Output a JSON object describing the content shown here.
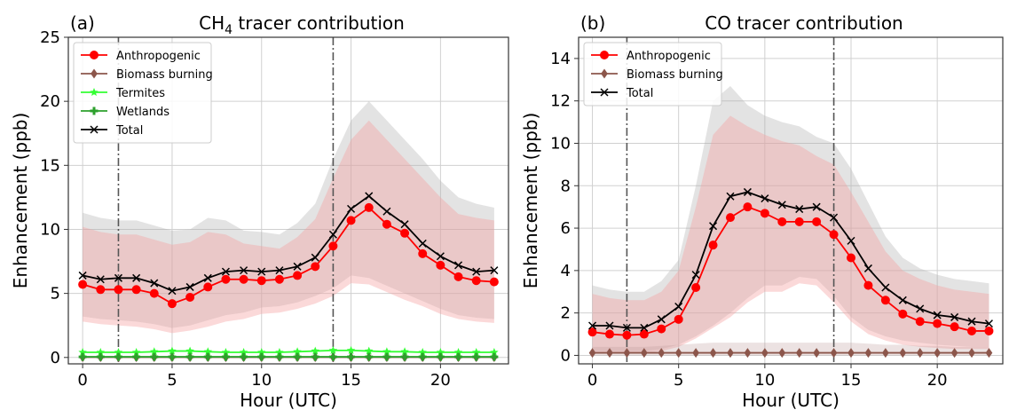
{
  "chart_data": [
    {
      "type": "line",
      "panel_label": "(a)",
      "title_main": "CH",
      "title_sub": "4",
      "title_rest": " tracer contribution",
      "xlabel": "Hour (UTC)",
      "ylabel": "Enhancement (ppb)",
      "xlim": [
        -0.8,
        23.8
      ],
      "ylim": [
        -0.5,
        25
      ],
      "xticks": [
        0,
        5,
        10,
        15,
        20
      ],
      "yticks": [
        0,
        5,
        10,
        15,
        20,
        25
      ],
      "grid": true,
      "legend_position": "top-left",
      "vlines": [
        2,
        14
      ],
      "x": [
        0,
        1,
        2,
        3,
        4,
        5,
        6,
        7,
        8,
        9,
        10,
        11,
        12,
        13,
        14,
        15,
        16,
        17,
        18,
        19,
        20,
        21,
        22,
        23
      ],
      "bands": [
        {
          "name": "Total range",
          "color": "#b0b0b0",
          "opacity": 0.35,
          "lower": [
            3.2,
            3.0,
            2.9,
            2.8,
            2.6,
            2.3,
            2.5,
            2.9,
            3.3,
            3.5,
            3.9,
            4.0,
            4.3,
            4.8,
            5.4,
            6.4,
            6.2,
            5.6,
            5.0,
            4.4,
            3.8,
            3.3,
            3.1,
            3.0
          ],
          "upper": [
            11.3,
            10.9,
            10.7,
            10.7,
            10.3,
            9.9,
            10.0,
            10.9,
            10.7,
            9.9,
            9.8,
            9.6,
            10.5,
            12.0,
            15.5,
            18.5,
            20.0,
            18.5,
            17.0,
            15.5,
            13.8,
            12.5,
            12.0,
            11.7
          ]
        },
        {
          "name": "Anthropogenic range",
          "color": "#f5a0a0",
          "opacity": 0.4,
          "lower": [
            2.8,
            2.6,
            2.5,
            2.4,
            2.2,
            1.9,
            2.1,
            2.4,
            2.8,
            3.0,
            3.4,
            3.5,
            3.8,
            4.2,
            4.8,
            5.8,
            5.7,
            5.1,
            4.5,
            4.0,
            3.4,
            3.0,
            2.8,
            2.7
          ],
          "upper": [
            10.2,
            9.8,
            9.6,
            9.6,
            9.2,
            8.8,
            9.0,
            9.8,
            9.6,
            8.9,
            8.7,
            8.5,
            9.4,
            10.8,
            14.0,
            17.0,
            18.5,
            17.0,
            15.5,
            14.0,
            12.5,
            11.2,
            10.9,
            10.7
          ]
        }
      ],
      "series": [
        {
          "name": "Anthropogenic",
          "color": "#ff0000",
          "marker": "circle",
          "values": [
            5.7,
            5.3,
            5.3,
            5.3,
            5.0,
            4.2,
            4.7,
            5.5,
            6.1,
            6.1,
            6.0,
            6.1,
            6.4,
            7.1,
            8.7,
            10.7,
            11.7,
            10.4,
            9.7,
            8.1,
            7.2,
            6.3,
            6.0,
            5.9
          ]
        },
        {
          "name": "Biomass burning",
          "color": "#8c564b",
          "marker": "diamond",
          "values": [
            0.02,
            0.02,
            0.02,
            0.02,
            0.02,
            0.02,
            0.02,
            0.02,
            0.02,
            0.02,
            0.02,
            0.02,
            0.02,
            0.02,
            0.02,
            0.02,
            0.02,
            0.02,
            0.02,
            0.02,
            0.02,
            0.02,
            0.02,
            0.02
          ]
        },
        {
          "name": "Termites",
          "color": "#33ff33",
          "marker": "star",
          "values": [
            0.4,
            0.4,
            0.4,
            0.4,
            0.45,
            0.5,
            0.5,
            0.45,
            0.4,
            0.4,
            0.4,
            0.4,
            0.45,
            0.5,
            0.55,
            0.55,
            0.5,
            0.45,
            0.45,
            0.4,
            0.4,
            0.4,
            0.4,
            0.4
          ]
        },
        {
          "name": "Wetlands",
          "color": "#2ca02c",
          "marker": "plus",
          "values": [
            0.05,
            0.05,
            0.05,
            0.05,
            0.05,
            0.05,
            0.05,
            0.05,
            0.05,
            0.05,
            0.05,
            0.05,
            0.05,
            0.05,
            0.05,
            0.05,
            0.05,
            0.05,
            0.05,
            0.05,
            0.05,
            0.05,
            0.05,
            0.05
          ]
        },
        {
          "name": "Total",
          "color": "#000000",
          "marker": "x",
          "values": [
            6.4,
            6.1,
            6.2,
            6.2,
            5.8,
            5.2,
            5.5,
            6.2,
            6.7,
            6.8,
            6.7,
            6.8,
            7.1,
            7.8,
            9.6,
            11.6,
            12.6,
            11.4,
            10.4,
            8.9,
            7.9,
            7.2,
            6.7,
            6.8
          ]
        }
      ]
    },
    {
      "type": "line",
      "panel_label": "(b)",
      "title_main": "CO tracer contribution",
      "title_sub": "",
      "title_rest": "",
      "xlabel": "Hour (UTC)",
      "ylabel": "Enhancement (ppb)",
      "xlim": [
        -0.8,
        23.8
      ],
      "ylim": [
        -0.4,
        15
      ],
      "xticks": [
        0,
        5,
        10,
        15,
        20
      ],
      "yticks": [
        0,
        2,
        4,
        6,
        8,
        10,
        12,
        14
      ],
      "grid": true,
      "legend_position": "top-left",
      "vlines": [
        2,
        14
      ],
      "x": [
        0,
        1,
        2,
        3,
        4,
        5,
        6,
        7,
        8,
        9,
        10,
        11,
        12,
        13,
        14,
        15,
        16,
        17,
        18,
        19,
        20,
        21,
        22,
        23
      ],
      "bands": [
        {
          "name": "Total range",
          "color": "#b0b0b0",
          "opacity": 0.35,
          "lower": [
            0.2,
            0.2,
            0.2,
            0.2,
            0.3,
            0.5,
            0.9,
            1.4,
            2.0,
            2.7,
            3.3,
            3.3,
            3.7,
            3.6,
            2.8,
            1.8,
            1.2,
            0.9,
            0.7,
            0.6,
            0.5,
            0.45,
            0.4,
            0.4
          ],
          "upper": [
            3.3,
            3.1,
            3.0,
            3.0,
            3.5,
            4.5,
            8.0,
            12.0,
            12.7,
            11.8,
            11.3,
            11.0,
            10.8,
            10.3,
            10.0,
            8.8,
            7.2,
            5.6,
            4.6,
            4.1,
            3.8,
            3.6,
            3.5,
            3.4
          ]
        },
        {
          "name": "Anthropogenic range",
          "color": "#f5a0a0",
          "opacity": 0.4,
          "lower": [
            0.1,
            0.1,
            0.1,
            0.1,
            0.2,
            0.4,
            0.8,
            1.3,
            1.8,
            2.5,
            3.0,
            3.0,
            3.4,
            3.3,
            2.5,
            1.6,
            1.0,
            0.7,
            0.5,
            0.4,
            0.35,
            0.3,
            0.3,
            0.3
          ],
          "upper": [
            2.9,
            2.7,
            2.6,
            2.6,
            3.0,
            4.0,
            7.0,
            10.4,
            11.3,
            10.8,
            10.4,
            10.1,
            9.9,
            9.4,
            9.0,
            7.7,
            6.3,
            4.9,
            4.0,
            3.6,
            3.3,
            3.1,
            3.0,
            2.9
          ]
        },
        {
          "name": "Biomass range",
          "color": "#c0a0a0",
          "opacity": 0.3,
          "lower": [
            0,
            0,
            0,
            0,
            0,
            0,
            0,
            0,
            0,
            0,
            0,
            0,
            0,
            0,
            0,
            0,
            0,
            0,
            0,
            0,
            0,
            0,
            0,
            0
          ],
          "upper": [
            0.4,
            0.4,
            0.4,
            0.4,
            0.45,
            0.5,
            0.55,
            0.6,
            0.6,
            0.6,
            0.6,
            0.6,
            0.6,
            0.6,
            0.6,
            0.6,
            0.55,
            0.5,
            0.5,
            0.45,
            0.45,
            0.4,
            0.4,
            0.4
          ]
        }
      ],
      "series": [
        {
          "name": "Anthropogenic",
          "color": "#ff0000",
          "marker": "circle",
          "values": [
            1.1,
            1.0,
            0.95,
            1.0,
            1.25,
            1.7,
            3.2,
            5.2,
            6.5,
            7.0,
            6.7,
            6.3,
            6.3,
            6.3,
            5.7,
            4.6,
            3.3,
            2.6,
            1.95,
            1.6,
            1.5,
            1.35,
            1.15,
            1.15
          ]
        },
        {
          "name": "Biomass burning",
          "color": "#8c564b",
          "marker": "diamond",
          "values": [
            0.12,
            0.12,
            0.12,
            0.12,
            0.12,
            0.12,
            0.12,
            0.12,
            0.12,
            0.12,
            0.12,
            0.12,
            0.12,
            0.12,
            0.12,
            0.12,
            0.12,
            0.12,
            0.12,
            0.12,
            0.12,
            0.12,
            0.12,
            0.12
          ]
        },
        {
          "name": "Total",
          "color": "#000000",
          "marker": "x",
          "values": [
            1.4,
            1.4,
            1.3,
            1.3,
            1.7,
            2.3,
            3.8,
            6.1,
            7.5,
            7.7,
            7.4,
            7.1,
            6.9,
            7.0,
            6.5,
            5.4,
            4.1,
            3.2,
            2.6,
            2.2,
            1.9,
            1.8,
            1.6,
            1.5
          ]
        }
      ]
    }
  ]
}
